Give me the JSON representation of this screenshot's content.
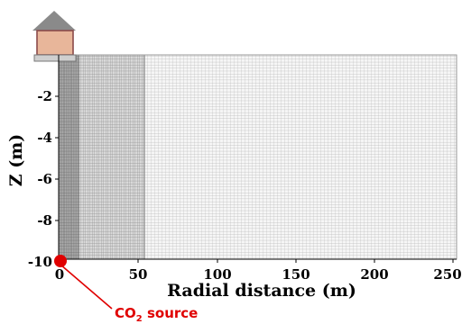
{
  "diagram": {
    "xlabel": "Radial distance (m)",
    "ylabel": "Z (m)",
    "x_ticks": [
      "0",
      "50",
      "100",
      "150",
      "200",
      "250"
    ],
    "y_ticks": [
      "-2",
      "-4",
      "-6",
      "-8",
      "-10"
    ],
    "source_label_main": "CO",
    "source_label_sub": "2",
    "source_label_rest": " source",
    "colors": {
      "source": "#e00000",
      "grid_dense": "#7a7a7a",
      "grid_medium": "#bdbdbd",
      "grid_fine": "#f2f2f2",
      "house_wall": "#e8b69a",
      "roof": "#8a8a8a"
    }
  },
  "chart_data": {
    "type": "mesh",
    "x_range": [
      0,
      250
    ],
    "y_range": [
      -10,
      0
    ],
    "x_tick_values": [
      0,
      50,
      100,
      150,
      200,
      250
    ],
    "y_tick_values": [
      -2,
      -4,
      -6,
      -8,
      -10
    ],
    "source_point": {
      "x": 0,
      "y": -10
    },
    "refined_zone_x": [
      0,
      55
    ]
  }
}
